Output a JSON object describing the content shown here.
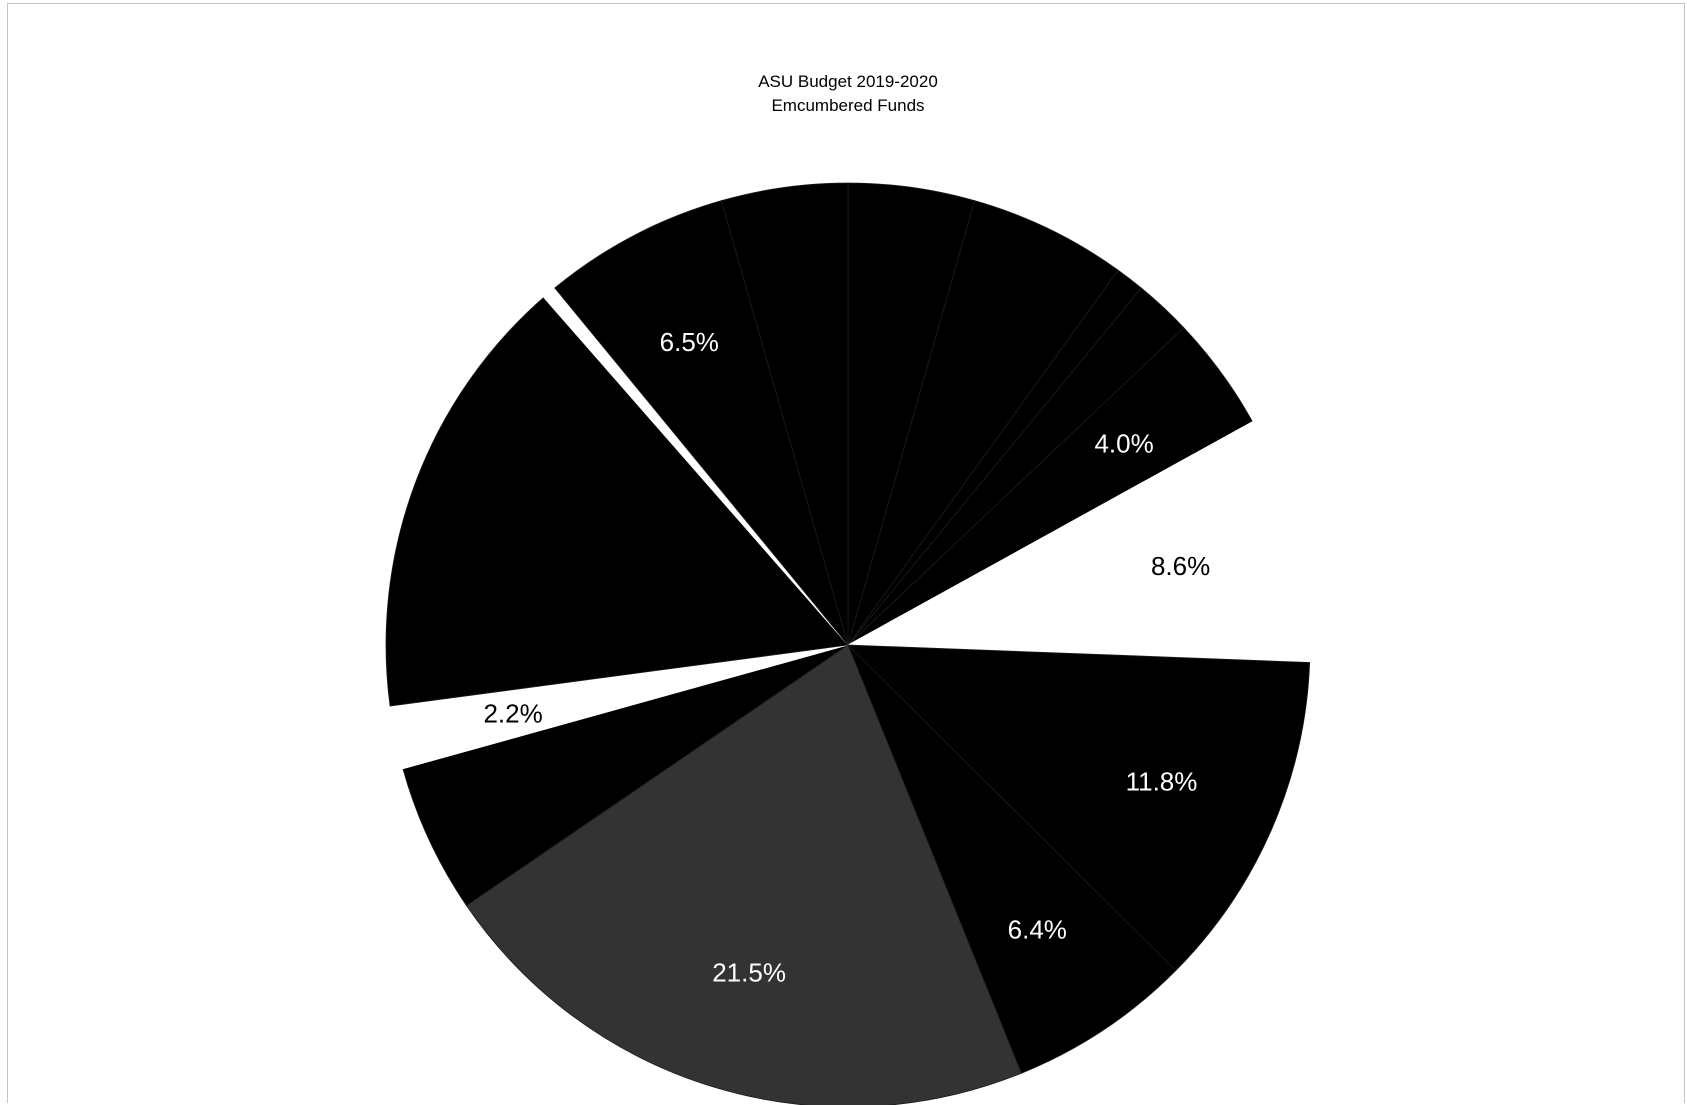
{
  "chart_data": {
    "type": "pie",
    "title": "ASU Budget 2019-2020",
    "subtitle": "Emcumbered Funds",
    "slices": [
      {
        "value": 4.4,
        "label": "",
        "color": "#000000"
      },
      {
        "value": 5.5,
        "label": "",
        "color": "#000000"
      },
      {
        "value": 1.0,
        "label": "",
        "color": "#000000"
      },
      {
        "value": 2.0,
        "label": "",
        "color": "#000000"
      },
      {
        "value": 4.0,
        "label": "4.0%",
        "color": "#000000"
      },
      {
        "value": 8.6,
        "label": "8.6%",
        "color": "#ffffff"
      },
      {
        "value": 11.8,
        "label": "11.8%",
        "color": "#000000"
      },
      {
        "value": 6.4,
        "label": "6.4%",
        "color": "#000000"
      },
      {
        "value": 21.5,
        "label": "21.5%",
        "color": "#333333"
      },
      {
        "value": 5.2,
        "label": "",
        "color": "#000000"
      },
      {
        "value": 2.2,
        "label": "2.2%",
        "color": "#ffffff"
      },
      {
        "value": 15.6,
        "label": "",
        "color": "#000000"
      },
      {
        "value": 0.5,
        "label": "",
        "color": "#ffffff"
      },
      {
        "value": 6.5,
        "label": "6.5%",
        "color": "#000000"
      },
      {
        "value": 4.4,
        "label": "",
        "color": "#000000"
      }
    ]
  }
}
